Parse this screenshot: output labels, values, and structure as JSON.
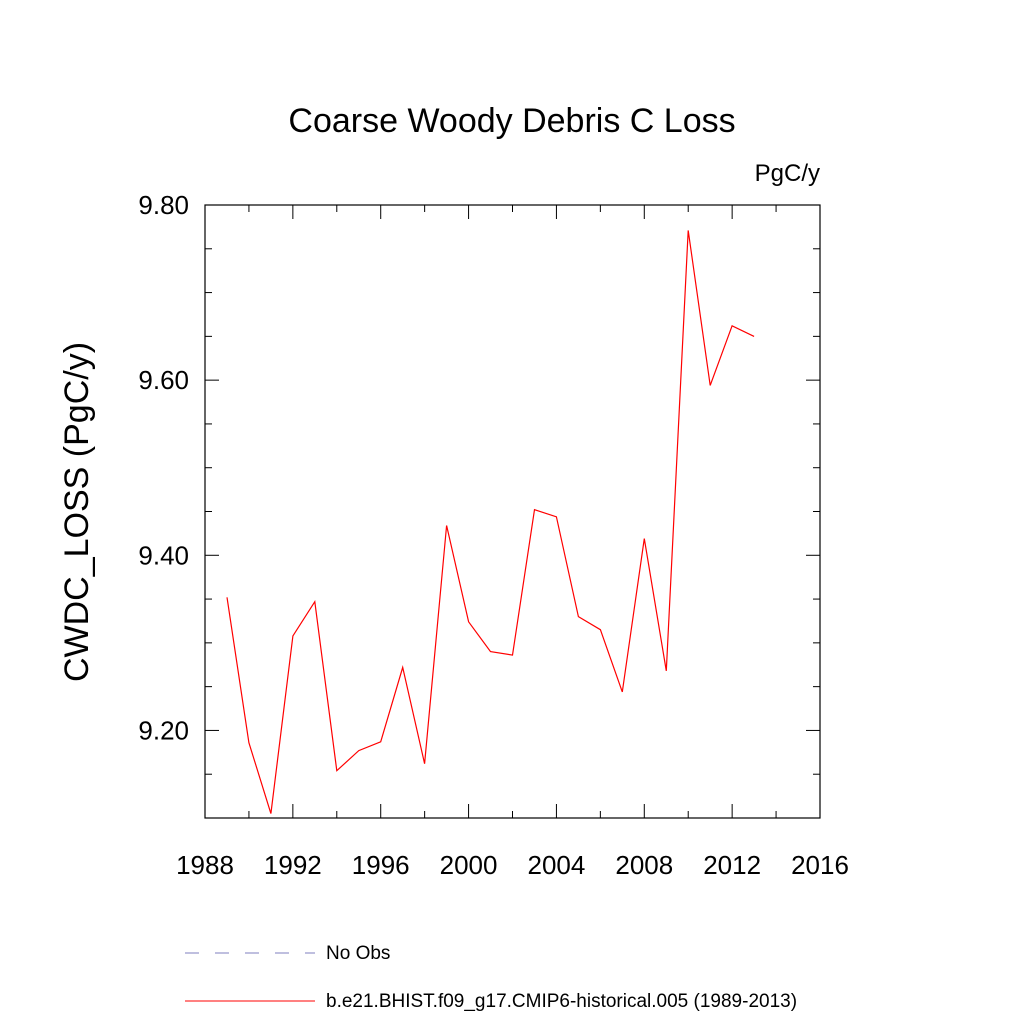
{
  "chart_data": {
    "type": "line",
    "title": "Coarse Woody Debris C Loss",
    "units": "PgC/y",
    "ylabel": "CWDC_LOSS  (PgC/y)",
    "xlabel": "",
    "xlim": [
      1988,
      2016
    ],
    "ylim": [
      9.1,
      9.8
    ],
    "xticks": [
      1988,
      1992,
      1996,
      2000,
      2004,
      2008,
      2012,
      2016
    ],
    "yticks": [
      9.2,
      9.4,
      9.6,
      9.8
    ],
    "xtick_labels": [
      "1988",
      "1992",
      "1996",
      "2000",
      "2004",
      "2008",
      "2012",
      "2016"
    ],
    "ytick_labels": [
      "9.20",
      "9.40",
      "9.60",
      "9.80"
    ],
    "grid": false,
    "legend": [
      {
        "label": "No Obs",
        "color": "#7f7fbf",
        "style": "dashed"
      },
      {
        "label": "b.e21.BHIST.f09_g17.CMIP6-historical.005 (1989-2013)",
        "color": "#ff0000",
        "style": "solid"
      }
    ],
    "series": [
      {
        "name": "b.e21.BHIST.f09_g17.CMIP6-historical.005 (1989-2013)",
        "color": "#ff0000",
        "x": [
          1989,
          1990,
          1991,
          1992,
          1993,
          1994,
          1995,
          1996,
          1997,
          1998,
          1999,
          2000,
          2001,
          2002,
          2003,
          2004,
          2005,
          2006,
          2007,
          2008,
          2009,
          2010,
          2011,
          2012,
          2013
        ],
        "values": [
          9.352,
          9.186,
          9.105,
          9.308,
          9.347,
          9.154,
          9.177,
          9.187,
          9.272,
          9.162,
          9.434,
          9.324,
          9.29,
          9.286,
          9.452,
          9.444,
          9.33,
          9.315,
          9.244,
          9.419,
          9.268,
          9.771,
          9.594,
          9.662,
          9.65
        ]
      }
    ]
  }
}
